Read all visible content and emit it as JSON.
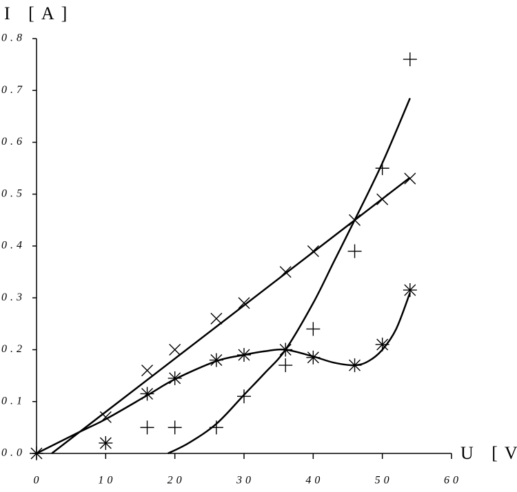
{
  "chart_data": {
    "type": "scatter",
    "y_label": "I [A]",
    "x_label": "U [V]",
    "xlim": [
      0,
      60
    ],
    "ylim": [
      0,
      0.8
    ],
    "xticks": [
      0,
      10,
      20,
      30,
      40,
      50,
      60
    ],
    "yticks": [
      {
        "value": 0,
        "label": "0.0"
      },
      0.1,
      0.2,
      0.3,
      0.4,
      0.5,
      0.6,
      0.7,
      0.8
    ],
    "color": "#000000",
    "series": [
      {
        "marker": "plus",
        "x": [
          16,
          20,
          26,
          30,
          36,
          40,
          46,
          50,
          54
        ],
        "values": [
          0.05,
          0.05,
          0.05,
          0.11,
          0.17,
          0.24,
          0.39,
          0.55,
          0.76
        ]
      },
      {
        "marker": "cross",
        "x": [
          10,
          16,
          20,
          26,
          30,
          36,
          40,
          46,
          50,
          54
        ],
        "values": [
          0.07,
          0.16,
          0.2,
          0.26,
          0.29,
          0.35,
          0.39,
          0.45,
          0.49,
          0.53
        ]
      },
      {
        "marker": "asterisk",
        "x": [
          0,
          10,
          16,
          20,
          26,
          30,
          36,
          40,
          46,
          50,
          54
        ],
        "values": [
          0,
          0.02,
          0.115,
          0.145,
          0.18,
          0.19,
          0.2,
          0.185,
          0.17,
          0.21,
          0.315
        ]
      }
    ],
    "curves": [
      {
        "x": [
          19,
          22,
          26,
          30,
          33,
          36,
          40,
          43,
          46,
          50,
          54
        ],
        "values": [
          0,
          0.02,
          0.057,
          0.113,
          0.155,
          0.2,
          0.29,
          0.37,
          0.45,
          0.56,
          0.685
        ]
      },
      {
        "x": [
          2.2,
          54
        ],
        "values": [
          0,
          0.532
        ]
      },
      {
        "x": [
          0,
          6,
          10,
          16,
          20,
          26,
          30,
          33,
          36,
          40,
          43,
          46,
          48,
          50,
          52,
          54
        ],
        "values": [
          0,
          0.04,
          0.066,
          0.112,
          0.143,
          0.178,
          0.19,
          0.197,
          0.2,
          0.187,
          0.175,
          0.17,
          0.178,
          0.2,
          0.24,
          0.31
        ]
      }
    ]
  }
}
